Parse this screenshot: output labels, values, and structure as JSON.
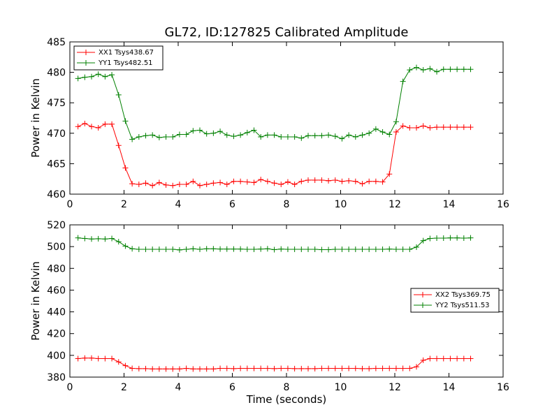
{
  "chart_data": [
    {
      "type": "line",
      "title": "GL72, ID:127825 Calibrated Amplitude",
      "xlabel": "",
      "ylabel": "Power in Kelvin",
      "xlim": [
        0,
        16
      ],
      "ylim": [
        460,
        485
      ],
      "xticks": [
        "0",
        "2",
        "4",
        "6",
        "8",
        "10",
        "12",
        "14",
        "16"
      ],
      "yticks": [
        "460",
        "465",
        "470",
        "475",
        "480",
        "485"
      ],
      "legend_position": "upper-left",
      "series": [
        {
          "name": "XX1 Tsys438.67",
          "color": "#ff0000",
          "x": [
            0.3,
            0.55,
            0.8,
            1.05,
            1.3,
            1.55,
            1.8,
            2.05,
            2.3,
            2.55,
            2.8,
            3.05,
            3.3,
            3.55,
            3.8,
            4.05,
            4.3,
            4.55,
            4.8,
            5.05,
            5.3,
            5.55,
            5.8,
            6.05,
            6.3,
            6.55,
            6.8,
            7.05,
            7.3,
            7.55,
            7.8,
            8.05,
            8.3,
            8.55,
            8.8,
            9.05,
            9.3,
            9.55,
            9.8,
            10.05,
            10.3,
            10.55,
            10.8,
            11.05,
            11.3,
            11.55,
            11.8,
            12.05,
            12.3,
            12.55,
            12.8,
            13.05,
            13.3,
            13.55,
            13.8,
            14.05,
            14.3,
            14.55,
            14.8
          ],
          "y": [
            471.1,
            471.6,
            471.1,
            470.9,
            471.5,
            471.5,
            468.0,
            464.3,
            461.7,
            461.6,
            461.8,
            461.4,
            461.9,
            461.5,
            461.4,
            461.6,
            461.6,
            462.1,
            461.4,
            461.6,
            461.8,
            461.9,
            461.6,
            462.1,
            462.1,
            462.0,
            461.9,
            462.4,
            462.1,
            461.8,
            461.6,
            462.0,
            461.6,
            462.1,
            462.3,
            462.3,
            462.3,
            462.2,
            462.3,
            462.1,
            462.2,
            462.1,
            461.7,
            462.1,
            462.1,
            462.0,
            463.3,
            470.2,
            471.2,
            470.9,
            470.9,
            471.2,
            470.9,
            471.0,
            471.0,
            471.0,
            471.0,
            471.0,
            471.0
          ]
        },
        {
          "name": "YY1 Tsys482.51",
          "color": "#008000",
          "x": [
            0.3,
            0.55,
            0.8,
            1.05,
            1.3,
            1.55,
            1.8,
            2.05,
            2.3,
            2.55,
            2.8,
            3.05,
            3.3,
            3.55,
            3.8,
            4.05,
            4.3,
            4.55,
            4.8,
            5.05,
            5.3,
            5.55,
            5.8,
            6.05,
            6.3,
            6.55,
            6.8,
            7.05,
            7.3,
            7.55,
            7.8,
            8.05,
            8.3,
            8.55,
            8.8,
            9.05,
            9.3,
            9.55,
            9.8,
            10.05,
            10.3,
            10.55,
            10.8,
            11.05,
            11.3,
            11.55,
            11.8,
            12.05,
            12.3,
            12.55,
            12.8,
            13.05,
            13.3,
            13.55,
            13.8,
            14.05,
            14.3,
            14.55,
            14.8
          ],
          "y": [
            479.0,
            479.2,
            479.3,
            479.7,
            479.3,
            479.6,
            476.3,
            472.0,
            469.0,
            469.4,
            469.6,
            469.7,
            469.3,
            469.4,
            469.4,
            469.8,
            469.8,
            470.4,
            470.5,
            469.9,
            470.0,
            470.3,
            469.7,
            469.5,
            469.7,
            470.1,
            470.5,
            469.4,
            469.7,
            469.7,
            469.4,
            469.4,
            469.4,
            469.2,
            469.6,
            469.6,
            469.6,
            469.7,
            469.5,
            469.1,
            469.7,
            469.4,
            469.7,
            470.0,
            470.7,
            470.2,
            469.8,
            471.9,
            478.5,
            480.4,
            480.8,
            480.4,
            480.6,
            480.1,
            480.5,
            480.5,
            480.5,
            480.5,
            480.5
          ]
        }
      ]
    },
    {
      "type": "line",
      "title": "",
      "xlabel": "Time (seconds)",
      "ylabel": "Power in Kelvin",
      "xlim": [
        0,
        16
      ],
      "ylim": [
        380,
        520
      ],
      "xticks": [
        "0",
        "2",
        "4",
        "6",
        "8",
        "10",
        "12",
        "14",
        "16"
      ],
      "yticks": [
        "380",
        "400",
        "420",
        "440",
        "460",
        "480",
        "500",
        "520"
      ],
      "legend_position": "center-right",
      "series": [
        {
          "name": "XX2 Tsys369.75",
          "color": "#ff0000",
          "x": [
            0.3,
            0.55,
            0.8,
            1.05,
            1.3,
            1.55,
            1.8,
            2.05,
            2.3,
            2.55,
            2.8,
            3.05,
            3.3,
            3.55,
            3.8,
            4.05,
            4.3,
            4.55,
            4.8,
            5.05,
            5.3,
            5.55,
            5.8,
            6.05,
            6.3,
            6.55,
            6.8,
            7.05,
            7.3,
            7.55,
            7.8,
            8.05,
            8.3,
            8.55,
            8.8,
            9.05,
            9.3,
            9.55,
            9.8,
            10.05,
            10.3,
            10.55,
            10.8,
            11.05,
            11.3,
            11.55,
            11.8,
            12.05,
            12.3,
            12.55,
            12.8,
            13.05,
            13.3,
            13.55,
            13.8,
            14.05,
            14.3,
            14.55,
            14.8
          ],
          "y": [
            397,
            397.5,
            397.5,
            397,
            397,
            397,
            394,
            390.5,
            388,
            387.8,
            387.8,
            387.5,
            387.5,
            387.5,
            387.5,
            387.5,
            388,
            387.5,
            387.5,
            387.5,
            387.5,
            388,
            388,
            387.8,
            388,
            388,
            388,
            388,
            388,
            387.8,
            388,
            388,
            387.8,
            387.8,
            387.8,
            387.8,
            388,
            388,
            388,
            388,
            388,
            388,
            387.8,
            387.8,
            388,
            388,
            388,
            388,
            388,
            388,
            389.5,
            395.5,
            397,
            397,
            397,
            397,
            397,
            397,
            397
          ]
        },
        {
          "name": "YY2 Tsys511.53",
          "color": "#008000",
          "x": [
            0.3,
            0.55,
            0.8,
            1.05,
            1.3,
            1.55,
            1.8,
            2.05,
            2.3,
            2.55,
            2.8,
            3.05,
            3.3,
            3.55,
            3.8,
            4.05,
            4.3,
            4.55,
            4.8,
            5.05,
            5.3,
            5.55,
            5.8,
            6.05,
            6.3,
            6.55,
            6.8,
            7.05,
            7.3,
            7.55,
            7.8,
            8.05,
            8.3,
            8.55,
            8.8,
            9.05,
            9.3,
            9.55,
            9.8,
            10.05,
            10.3,
            10.55,
            10.8,
            11.05,
            11.3,
            11.55,
            11.8,
            12.05,
            12.3,
            12.55,
            12.8,
            13.05,
            13.3,
            13.55,
            13.8,
            14.05,
            14.3,
            14.55,
            14.8
          ],
          "y": [
            508,
            507.5,
            507,
            507.2,
            507,
            507.5,
            504.5,
            500.5,
            498,
            497.5,
            497.5,
            497.5,
            497.5,
            497.5,
            497.5,
            497,
            497.5,
            498,
            497.5,
            498,
            498,
            497.8,
            497.8,
            497.8,
            497.8,
            497.5,
            497.5,
            497.8,
            498,
            497.2,
            497.8,
            497.5,
            497.5,
            497.5,
            497.5,
            497.5,
            497.2,
            497.2,
            497.5,
            497.5,
            497.5,
            497.5,
            497.5,
            497.5,
            497.5,
            497.5,
            497.8,
            497.5,
            497.5,
            497.5,
            499.5,
            505.5,
            507.5,
            507.8,
            507.8,
            508,
            508,
            507.8,
            508
          ]
        }
      ]
    }
  ]
}
